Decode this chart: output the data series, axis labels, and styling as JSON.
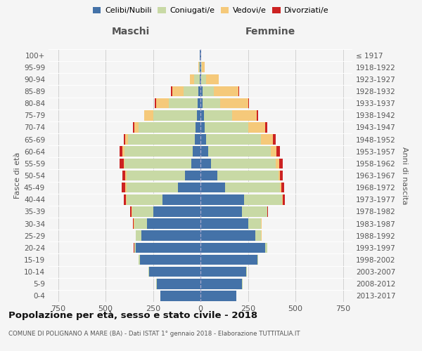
{
  "age_groups": [
    "0-4",
    "5-9",
    "10-14",
    "15-19",
    "20-24",
    "25-29",
    "30-34",
    "35-39",
    "40-44",
    "45-49",
    "50-54",
    "55-59",
    "60-64",
    "65-69",
    "70-74",
    "75-79",
    "80-84",
    "85-89",
    "90-94",
    "95-99",
    "100+"
  ],
  "birth_years": [
    "2013-2017",
    "2008-2012",
    "2003-2007",
    "1998-2002",
    "1993-1997",
    "1988-1992",
    "1983-1987",
    "1978-1982",
    "1973-1977",
    "1968-1972",
    "1963-1967",
    "1958-1962",
    "1953-1957",
    "1948-1952",
    "1943-1947",
    "1938-1942",
    "1933-1937",
    "1928-1932",
    "1923-1927",
    "1918-1922",
    "≤ 1917"
  ],
  "males": {
    "celibi": [
      210,
      230,
      270,
      320,
      340,
      310,
      280,
      250,
      200,
      120,
      80,
      50,
      40,
      30,
      25,
      20,
      15,
      10,
      5,
      2,
      2
    ],
    "coniugati": [
      0,
      2,
      3,
      5,
      10,
      30,
      70,
      110,
      190,
      270,
      310,
      350,
      360,
      350,
      300,
      230,
      150,
      80,
      30,
      5,
      1
    ],
    "vedovi": [
      0,
      0,
      0,
      0,
      0,
      0,
      1,
      2,
      3,
      5,
      5,
      5,
      10,
      15,
      25,
      45,
      70,
      60,
      20,
      5,
      0
    ],
    "divorziati": [
      0,
      0,
      0,
      0,
      1,
      2,
      3,
      8,
      10,
      20,
      15,
      20,
      15,
      10,
      5,
      3,
      5,
      5,
      2,
      0,
      0
    ]
  },
  "females": {
    "nubili": [
      190,
      220,
      240,
      300,
      340,
      290,
      250,
      220,
      230,
      130,
      90,
      55,
      40,
      30,
      22,
      18,
      12,
      10,
      5,
      3,
      2
    ],
    "coniugate": [
      0,
      2,
      3,
      5,
      10,
      30,
      70,
      130,
      200,
      290,
      320,
      340,
      330,
      290,
      230,
      150,
      90,
      60,
      25,
      5,
      0
    ],
    "vedove": [
      0,
      0,
      0,
      0,
      0,
      1,
      1,
      2,
      3,
      5,
      10,
      20,
      30,
      60,
      90,
      130,
      150,
      130,
      65,
      15,
      1
    ],
    "divorziate": [
      0,
      0,
      0,
      0,
      1,
      2,
      3,
      5,
      10,
      15,
      15,
      20,
      18,
      15,
      10,
      5,
      5,
      5,
      2,
      0,
      0
    ]
  },
  "colors": {
    "celibi": "#4472a8",
    "coniugati": "#c8d9a5",
    "vedovi": "#f5c97a",
    "divorziati": "#cc2222"
  },
  "xlim": 800,
  "xticks": [
    -750,
    -500,
    -250,
    0,
    250,
    500,
    750
  ],
  "title": "Popolazione per età, sesso e stato civile - 2018",
  "subtitle": "COMUNE DI POLIGNANO A MARE (BA) - Dati ISTAT 1° gennaio 2018 - Elaborazione TUTTITALIA.IT",
  "ylabel_left": "Fasce di età",
  "ylabel_right": "Anni di nascita",
  "label_maschi": "Maschi",
  "label_femmine": "Femmine",
  "bg_color": "#f5f5f5",
  "grid_color": "#cccccc",
  "bar_height": 0.85,
  "legend_labels": [
    "Celibi/Nubili",
    "Coniugati/e",
    "Vedovi/e",
    "Divorziati/e"
  ]
}
